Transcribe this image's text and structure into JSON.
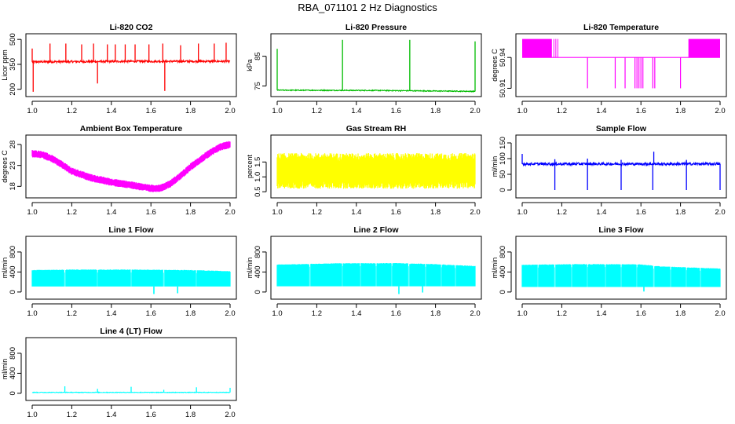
{
  "figure": {
    "suptitle": "RBA_071101  2 Hz Diagnostics"
  },
  "chart_data": [
    {
      "type": "line",
      "title": "Li-820 CO2",
      "ylabel": "Licor ppm",
      "color": "#ff0000",
      "xlim": [
        1.0,
        2.0
      ],
      "ylim": [
        175,
        515
      ],
      "xticks": [
        "1.0",
        "1.2",
        "1.4",
        "1.6",
        "1.8",
        "2.0"
      ],
      "yticks": [
        200,
        350,
        500
      ],
      "ytick_labels": [
        "200",
        "350",
        "500"
      ],
      "baseline": [
        [
          1.0,
          365
        ],
        [
          1.5,
          368
        ],
        [
          2.0,
          368
        ]
      ],
      "noise": 6,
      "spikes": [
        [
          1.0,
          445
        ],
        [
          1.005,
          185
        ],
        [
          1.09,
          475
        ],
        [
          1.17,
          475
        ],
        [
          1.25,
          470
        ],
        [
          1.31,
          475
        ],
        [
          1.33,
          235
        ],
        [
          1.38,
          470
        ],
        [
          1.42,
          470
        ],
        [
          1.47,
          470
        ],
        [
          1.52,
          470
        ],
        [
          1.59,
          470
        ],
        [
          1.66,
          475
        ],
        [
          1.67,
          190
        ],
        [
          1.75,
          465
        ],
        [
          1.84,
          475
        ],
        [
          1.92,
          475
        ],
        [
          1.98,
          480
        ]
      ]
    },
    {
      "type": "line",
      "title": "Li-820 Pressure",
      "ylabel": "kPa",
      "color": "#00bb00",
      "xlim": [
        1.0,
        2.0
      ],
      "ylim": [
        72.5,
        91.5
      ],
      "xticks": [
        "1.0",
        "1.2",
        "1.4",
        "1.6",
        "1.8",
        "2.0"
      ],
      "yticks": [
        75,
        85
      ],
      "ytick_labels": [
        "75",
        "85"
      ],
      "baseline": [
        [
          1.0,
          73.6
        ],
        [
          1.5,
          73.5
        ],
        [
          2.0,
          73.2
        ]
      ],
      "noise": 0.15,
      "spikes": [
        [
          1.0,
          87.5
        ],
        [
          1.33,
          90.5
        ],
        [
          1.67,
          90.5
        ],
        [
          2.0,
          90.0
        ]
      ]
    },
    {
      "type": "temperature",
      "title": "Li-820 Temperature",
      "ylabel": "degrees C",
      "color": "#ff00ff",
      "xlim": [
        1.0,
        2.0
      ],
      "ylim": [
        50.905,
        50.96
      ],
      "xticks": [
        "1.0",
        "1.2",
        "1.4",
        "1.6",
        "1.8",
        "2.0"
      ],
      "yticks": [
        50.91,
        50.94
      ],
      "ytick_labels": [
        "50.91",
        "50.94"
      ],
      "level": 50.94,
      "upper": 50.958,
      "toggle_bands": [
        [
          1.0,
          1.15
        ],
        [
          1.84,
          2.0
        ]
      ],
      "up_ticks": [
        1.16,
        1.17,
        1.18
      ],
      "down_ticks": [
        1.33,
        1.47,
        1.52,
        1.57,
        1.58,
        1.59,
        1.6,
        1.61,
        1.66,
        1.67,
        1.8
      ],
      "down_level": 50.91
    },
    {
      "type": "band",
      "title": "Ambient Box Temperature",
      "ylabel": "degrees C",
      "color": "#ff00ff",
      "xlim": [
        1.0,
        2.0
      ],
      "ylim": [
        16,
        29.5
      ],
      "xticks": [
        "1.0",
        "1.2",
        "1.4",
        "1.6",
        "1.8",
        "2.0"
      ],
      "yticks": [
        18,
        23,
        28
      ],
      "ytick_labels": [
        "18",
        "23",
        "28"
      ],
      "center": [
        [
          1.0,
          25.8
        ],
        [
          1.05,
          25.6
        ],
        [
          1.1,
          24.6
        ],
        [
          1.15,
          23.2
        ],
        [
          1.2,
          21.6
        ],
        [
          1.3,
          20.0
        ],
        [
          1.4,
          19.0
        ],
        [
          1.5,
          18.3
        ],
        [
          1.55,
          17.9
        ],
        [
          1.6,
          17.5
        ],
        [
          1.65,
          17.6
        ],
        [
          1.7,
          18.7
        ],
        [
          1.75,
          20.5
        ],
        [
          1.8,
          22.6
        ],
        [
          1.85,
          24.4
        ],
        [
          1.9,
          26.0
        ],
        [
          1.95,
          27.4
        ],
        [
          2.0,
          28.0
        ]
      ],
      "half_width": 0.9
    },
    {
      "type": "band",
      "title": "Gas Stream RH",
      "ylabel": "percent",
      "color": "#ffff00",
      "xlim": [
        1.0,
        2.0
      ],
      "ylim": [
        0.4,
        2.3
      ],
      "xticks": [
        "1.0",
        "1.2",
        "1.4",
        "1.6",
        "1.8",
        "2.0"
      ],
      "yticks": [
        0.5,
        1.0,
        1.5
      ],
      "ytick_labels": [
        "0.5",
        "1.0",
        "1.5"
      ],
      "center": [
        [
          1.0,
          1.2
        ],
        [
          2.0,
          1.2
        ]
      ],
      "half_width": 0.6
    },
    {
      "type": "line",
      "title": "Sample Flow",
      "ylabel": "ml/min",
      "color": "#0000ff",
      "xlim": [
        1.0,
        2.0
      ],
      "ylim": [
        -15,
        165
      ],
      "xticks": [
        "1.0",
        "1.2",
        "1.4",
        "1.6",
        "1.8",
        "2.0"
      ],
      "yticks": [
        0,
        50,
        100,
        150
      ],
      "ytick_labels": [
        "0",
        "50",
        "100",
        "150"
      ],
      "baseline": [
        [
          1.0,
          83
        ],
        [
          2.0,
          83
        ]
      ],
      "noise": 4,
      "spikes": [
        [
          1.0,
          115
        ],
        [
          1.165,
          0
        ],
        [
          1.165,
          98
        ],
        [
          1.33,
          0
        ],
        [
          1.33,
          100
        ],
        [
          1.5,
          0
        ],
        [
          1.5,
          96
        ],
        [
          1.66,
          0
        ],
        [
          1.665,
          122
        ],
        [
          1.83,
          0
        ],
        [
          1.83,
          96
        ],
        [
          2.0,
          0
        ]
      ]
    },
    {
      "type": "flow",
      "title": "Line 1 Flow",
      "ylabel": "ml/min",
      "color": "#00ffff",
      "xlim": [
        1.0,
        2.0
      ],
      "ylim": [
        -80,
        1050
      ],
      "xticks": [
        "1.0",
        "1.2",
        "1.4",
        "1.6",
        "1.8",
        "2.0"
      ],
      "yticks": [
        0,
        400,
        800
      ],
      "ytick_labels": [
        "0",
        "400",
        "800"
      ],
      "top": [
        [
          1.0,
          440
        ],
        [
          1.2,
          450
        ],
        [
          1.5,
          450
        ],
        [
          1.8,
          440
        ],
        [
          2.0,
          420
        ]
      ],
      "bottom": 110,
      "gaps": [
        1.165,
        1.33,
        1.5,
        1.665,
        1.83
      ],
      "dips": [
        [
          1.615,
          -40
        ],
        [
          1.735,
          -25
        ]
      ]
    },
    {
      "type": "flow",
      "title": "Line 2 Flow",
      "ylabel": "ml/min",
      "color": "#00ffff",
      "xlim": [
        1.0,
        2.0
      ],
      "ylim": [
        -80,
        1050
      ],
      "xticks": [
        "1.0",
        "1.2",
        "1.4",
        "1.6",
        "1.8",
        "2.0"
      ],
      "yticks": [
        0,
        400,
        800
      ],
      "ytick_labels": [
        "0",
        "400",
        "800"
      ],
      "top": [
        [
          1.0,
          550
        ],
        [
          1.3,
          575
        ],
        [
          1.6,
          580
        ],
        [
          1.8,
          560
        ],
        [
          2.0,
          520
        ]
      ],
      "bottom": 115,
      "gaps": [
        1.165,
        1.33,
        1.42,
        1.5,
        1.58,
        1.665,
        1.75,
        1.83,
        1.9
      ],
      "dips": [
        [
          1.615,
          -40
        ],
        [
          1.735,
          -10
        ]
      ]
    },
    {
      "type": "flow",
      "title": "Line 3 Flow",
      "ylabel": "ml/min",
      "color": "#00ffff",
      "xlim": [
        1.0,
        2.0
      ],
      "ylim": [
        -80,
        1050
      ],
      "xticks": [
        "1.0",
        "1.2",
        "1.4",
        "1.6",
        "1.8",
        "2.0"
      ],
      "yticks": [
        0,
        400,
        800
      ],
      "ytick_labels": [
        "0",
        "400",
        "800"
      ],
      "top": [
        [
          1.0,
          545
        ],
        [
          1.3,
          560
        ],
        [
          1.6,
          555
        ],
        [
          1.68,
          520
        ],
        [
          1.8,
          500
        ],
        [
          2.0,
          470
        ]
      ],
      "bottom": 100,
      "gaps": [
        1.08,
        1.165,
        1.25,
        1.33,
        1.42,
        1.5,
        1.58,
        1.665,
        1.75,
        1.83,
        1.9
      ],
      "dips": [
        [
          1.615,
          10
        ]
      ]
    },
    {
      "type": "line",
      "title": "Line 4 (LT) Flow",
      "ylabel": "ml/min",
      "color": "#00ffff",
      "xlim": [
        1.0,
        2.0
      ],
      "ylim": [
        -80,
        1050
      ],
      "xticks": [
        "1.0",
        "1.2",
        "1.4",
        "1.6",
        "1.8",
        "2.0"
      ],
      "yticks": [
        0,
        400,
        800
      ],
      "ytick_labels": [
        "0",
        "400",
        "800"
      ],
      "baseline": [
        [
          1.0,
          18
        ],
        [
          2.0,
          18
        ]
      ],
      "noise": 6,
      "spikes": [
        [
          1.165,
          140
        ],
        [
          1.33,
          90
        ],
        [
          1.5,
          130
        ],
        [
          1.665,
          70
        ],
        [
          1.83,
          120
        ],
        [
          2.0,
          110
        ]
      ]
    }
  ]
}
